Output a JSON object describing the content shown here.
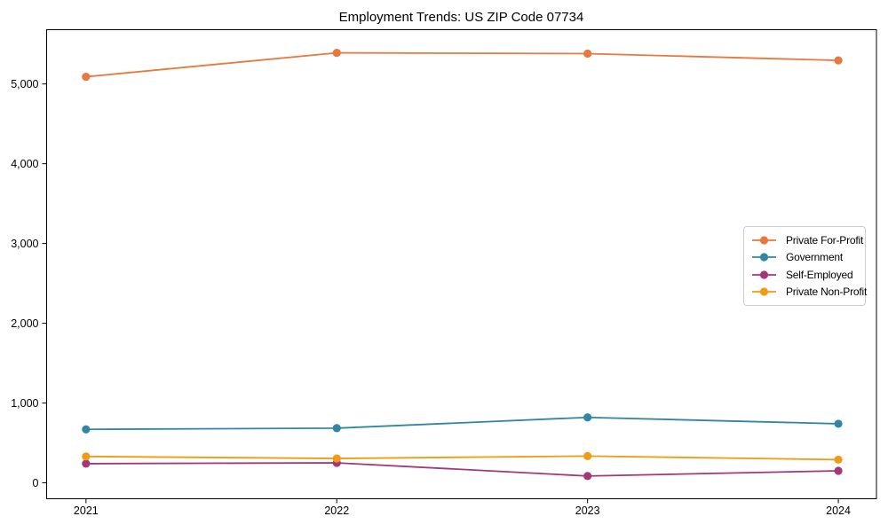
{
  "chart_data": {
    "type": "line",
    "title": "Employment Trends: US ZIP Code 07734",
    "xlabel": "",
    "ylabel": "",
    "x": [
      2021,
      2022,
      2023,
      2024
    ],
    "x_tick_labels": [
      "2021",
      "2022",
      "2023",
      "2024"
    ],
    "y_ticks": [
      0,
      1000,
      2000,
      3000,
      4000,
      5000
    ],
    "y_tick_labels": [
      "0",
      "1,000",
      "2,000",
      "3,000",
      "4,000",
      "5,000"
    ],
    "xlim": [
      2020.843,
      2024.152
    ],
    "ylim": [
      -200,
      5680
    ],
    "grid": false,
    "legend_position": "center right",
    "marker": "o",
    "series": [
      {
        "name": "Private For-Profit",
        "color": "#e8783c",
        "values": [
          5090,
          5390,
          5380,
          5295
        ]
      },
      {
        "name": "Government",
        "color": "#3187a3",
        "values": [
          670,
          685,
          820,
          740
        ]
      },
      {
        "name": "Self-Employed",
        "color": "#a43778",
        "values": [
          240,
          250,
          85,
          150
        ]
      },
      {
        "name": "Private Non-Profit",
        "color": "#f09c13",
        "values": [
          330,
          305,
          335,
          290
        ]
      }
    ],
    "axis_color": "#000000",
    "legend_border_color": "#cccccc",
    "background_color": "#ffffff"
  }
}
